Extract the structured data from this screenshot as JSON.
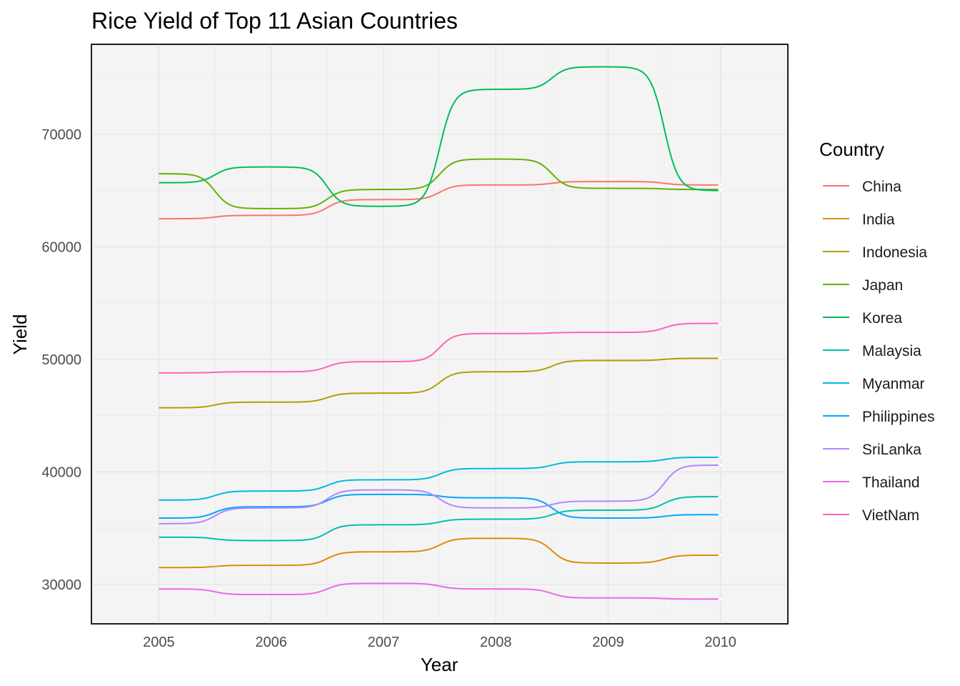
{
  "chart_data": {
    "type": "line",
    "title": "Rice Yield of Top 11 Asian Countries",
    "xlabel": "Year",
    "ylabel": "Yield",
    "x": [
      2005,
      2006,
      2007,
      2008,
      2009,
      2010
    ],
    "xlim": [
      2004.4,
      2010.6
    ],
    "ylim": [
      26500,
      78000
    ],
    "yticks": [
      30000,
      40000,
      50000,
      60000,
      70000
    ],
    "grid": true,
    "legend": {
      "title": "Country",
      "position": "right"
    },
    "series": [
      {
        "name": "China",
        "color": "#F8766D",
        "values": [
          62500,
          62800,
          64200,
          65500,
          65800,
          65500
        ]
      },
      {
        "name": "India",
        "color": "#DB8E00",
        "values": [
          31500,
          31700,
          32900,
          34100,
          31900,
          32600
        ]
      },
      {
        "name": "Indonesia",
        "color": "#AEA200",
        "values": [
          45700,
          46200,
          47000,
          48900,
          49900,
          50100
        ]
      },
      {
        "name": "Japan",
        "color": "#64B200",
        "values": [
          66500,
          63400,
          65100,
          67800,
          65200,
          65100
        ]
      },
      {
        "name": "Korea",
        "color": "#00BD5C",
        "values": [
          65700,
          67100,
          63600,
          74000,
          76000,
          65000
        ]
      },
      {
        "name": "Malaysia",
        "color": "#00C1A7",
        "values": [
          34200,
          33900,
          35300,
          35800,
          36600,
          37800
        ]
      },
      {
        "name": "Myanmar",
        "color": "#00BADE",
        "values": [
          37500,
          38300,
          39300,
          40300,
          40900,
          41300
        ]
      },
      {
        "name": "Philippines",
        "color": "#00A6FF",
        "values": [
          35900,
          36900,
          38000,
          37700,
          35900,
          36200
        ]
      },
      {
        "name": "SriLanka",
        "color": "#B385FF",
        "values": [
          35400,
          36800,
          38400,
          36800,
          37400,
          40600
        ]
      },
      {
        "name": "Thailand",
        "color": "#EF67EB",
        "values": [
          29600,
          29100,
          30100,
          29600,
          28800,
          28700
        ]
      },
      {
        "name": "VietNam",
        "color": "#FF63B6",
        "values": [
          48800,
          48900,
          49800,
          52300,
          52400,
          53200
        ]
      }
    ]
  }
}
